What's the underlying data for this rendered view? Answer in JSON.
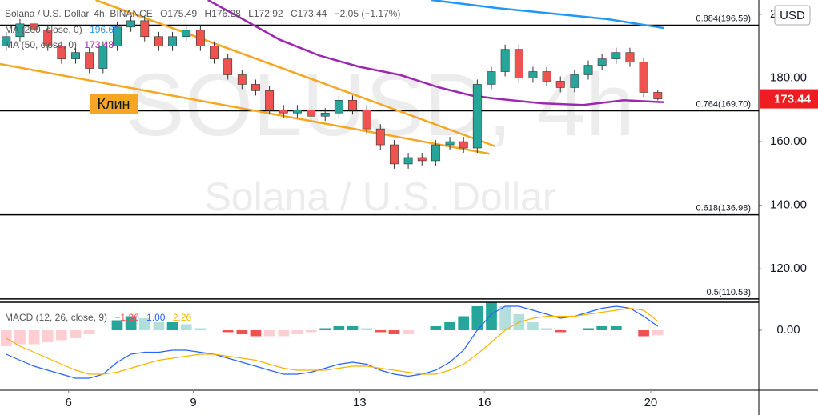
{
  "chart_data": [
    {
      "type": "candlestick",
      "title": "Solana / U.S. Dollar, 4h, BINANCE",
      "ohlc_legend": [
        "O175.49",
        "H176.28",
        "L172.92",
        "C173.44",
        "−2.05 (−1.17%)"
      ],
      "watermark": [
        "SOLUSD, 4h",
        "Solana / U.S. Dollar"
      ],
      "currency": "USD",
      "up_color": "#26a69a",
      "down_color": "#ef5350",
      "x": [
        4.5,
        4.83,
        5.17,
        5.5,
        5.83,
        6.17,
        6.5,
        6.83,
        7.17,
        7.5,
        7.83,
        8.17,
        8.5,
        8.83,
        9.17,
        9.5,
        9.83,
        10.17,
        10.5,
        10.83,
        11.17,
        11.5,
        11.83,
        12.17,
        12.5,
        12.83,
        13.17,
        13.5,
        13.83,
        14.17,
        14.5,
        14.83,
        15.17,
        15.5,
        15.83,
        16.17,
        16.5,
        16.83,
        17.17,
        17.5,
        17.83,
        18.17,
        18.5,
        18.83,
        19.17,
        19.5,
        19.83,
        20.17
      ],
      "open": [
        190,
        193,
        197,
        195,
        190,
        186,
        188,
        183,
        190,
        196,
        198,
        193,
        190,
        193,
        195,
        190,
        186,
        181,
        178,
        176,
        170,
        169,
        170,
        168,
        169,
        173,
        170,
        164,
        159,
        153,
        155,
        154,
        159,
        160,
        158,
        178,
        182,
        189,
        180,
        182,
        179,
        177,
        181,
        184,
        186,
        188,
        185,
        175.49
      ],
      "high": [
        194.5,
        198.5,
        198.5,
        196.5,
        191.5,
        189.5,
        189.5,
        191.5,
        197.5,
        199.5,
        199.5,
        194.5,
        194.5,
        196.5,
        196.5,
        191.5,
        187.5,
        182.5,
        179.5,
        177.5,
        171.5,
        171.5,
        171.5,
        170.5,
        174.5,
        174.5,
        171.5,
        165.5,
        160.5,
        156.5,
        156.5,
        160.5,
        161.5,
        161.5,
        179.5,
        183.5,
        190.5,
        190.5,
        183.5,
        183.5,
        180.5,
        182.5,
        185.5,
        187.5,
        189.5,
        189.5,
        186.5,
        176.28
      ],
      "low": [
        188.5,
        191.5,
        193.5,
        188.5,
        184.5,
        184.5,
        181.5,
        181.5,
        188.5,
        194.5,
        191.5,
        188.5,
        188.5,
        191.5,
        188.5,
        184.5,
        179.5,
        176.5,
        174.5,
        168.5,
        167.5,
        167.5,
        166.5,
        166.5,
        167.5,
        168.5,
        162.5,
        157.5,
        151.5,
        151.5,
        152.5,
        152.5,
        157.5,
        156.5,
        156.5,
        176.5,
        180.5,
        178.5,
        178.5,
        177.5,
        175.5,
        175.5,
        179.5,
        182.5,
        184.5,
        183.5,
        173.99,
        172.92
      ],
      "close": [
        193,
        197,
        195,
        190,
        186,
        188,
        183,
        190,
        196,
        198,
        193,
        190,
        193,
        195,
        190,
        186,
        181,
        178,
        176,
        170,
        169,
        170,
        168,
        169,
        173,
        170,
        164,
        159,
        153,
        155,
        154,
        159,
        160,
        158,
        178,
        182,
        189,
        180,
        182,
        179,
        177,
        181,
        184,
        186,
        188,
        185,
        175.49,
        173.44
      ],
      "overlays": [
        {
          "name": "MA (200, close, 0)",
          "value_label": "196.68",
          "color": "#2196f3",
          "x": [
            14.73,
            16.27,
            17.81,
            18.96,
            20.31
          ],
          "values": [
            204.5,
            202,
            200,
            198.5,
            195.7
          ]
        },
        {
          "name": "MA (50, close, 0)",
          "value_label": "173.48",
          "color": "#9c27b0",
          "x": [
            9.35,
            10.12,
            11.08,
            12.04,
            13,
            13.96,
            14.92,
            15.69,
            16.27,
            17.42,
            18.38,
            19.35,
            20.31
          ],
          "values": [
            204.5,
            199,
            192,
            187,
            183.5,
            181,
            177,
            174.5,
            173.5,
            172,
            171.5,
            173,
            172.4
          ]
        }
      ],
      "trendline_color": "#f5a623",
      "trendlines": [
        {
          "x": [
            6.65,
            16.27
          ],
          "values": [
            204.5,
            158.5
          ]
        },
        {
          "x": [
            4.35,
            16.12
          ],
          "values": [
            184.4,
            156.2
          ]
        }
      ],
      "annotation": "Клин",
      "levels": [
        {
          "value": 196.59,
          "label": "0.884(196.59)"
        },
        {
          "value": 169.7,
          "label": "0.764(169.70)"
        },
        {
          "value": 136.98,
          "label": "0.618(136.98)"
        },
        {
          "value": 110.53,
          "label": "0.5(110.53)"
        }
      ],
      "last_price": {
        "value": 173.44,
        "label": "173.44"
      },
      "ylim": [
        109.5,
        204.5
      ],
      "yticks": [
        {
          "value": 200,
          "label": "200.00"
        },
        {
          "value": 180,
          "label": "180.00"
        },
        {
          "value": 160,
          "label": "160.00"
        },
        {
          "value": 140,
          "label": "140.00"
        },
        {
          "value": 120,
          "label": "120.00"
        }
      ],
      "xlim": [
        4.35,
        22.6
      ],
      "xticks": [
        6,
        9,
        13,
        16,
        20
      ]
    },
    {
      "type": "macd",
      "title": "MACD (12, 26, close, 9)",
      "histogram": {
        "last_label": "−1.26",
        "colors": {
          "grow_above": "#26a69a",
          "fall_above": "#b2dfdb",
          "grow_below": "#ffcdd2",
          "fall_below": "#ef5350"
        },
        "values": [
          -4,
          -3.5,
          -3.5,
          -3,
          -2.5,
          -2,
          -1,
          0,
          2.5,
          3.5,
          3,
          2,
          2,
          1.5,
          0.5,
          0,
          -0.5,
          -1,
          -1.5,
          -1.5,
          -1.5,
          -1,
          -0.5,
          0.5,
          1,
          1,
          0.5,
          -0.5,
          -1,
          -1,
          0,
          1,
          2,
          3.5,
          6,
          7,
          6,
          4,
          2,
          0.5,
          -0.5,
          0,
          0.5,
          1,
          1,
          0,
          -1.5,
          -1.26
        ]
      },
      "macd": {
        "last_label": "1.00",
        "color": "#2962ff",
        "values": [
          -6,
          -7.5,
          -9,
          -10,
          -11,
          -12,
          -12,
          -11,
          -8,
          -6,
          -5.5,
          -5.5,
          -5,
          -5,
          -5.5,
          -6,
          -7,
          -8,
          -9,
          -10,
          -11,
          -11,
          -10.5,
          -9.5,
          -8.5,
          -8,
          -8.5,
          -10,
          -11,
          -11.5,
          -11,
          -10,
          -8,
          -5,
          0,
          4,
          6,
          6,
          5,
          4,
          3,
          3.5,
          4.5,
          5.5,
          6,
          5.5,
          3.5,
          1.0
        ]
      },
      "signal": {
        "last_label": "2.26",
        "color": "#f5b400",
        "values": [
          -2,
          -4,
          -5.5,
          -7,
          -8.5,
          -10,
          -11,
          -11,
          -10.5,
          -9.5,
          -8.5,
          -7.5,
          -7,
          -6.5,
          -6,
          -6,
          -6.5,
          -7,
          -7.5,
          -8.5,
          -9.5,
          -10,
          -10,
          -10,
          -9.5,
          -9,
          -9,
          -9.5,
          -10,
          -10.5,
          -11,
          -11,
          -10,
          -8.5,
          -6,
          -3,
          0,
          2,
          3,
          3.5,
          3.5,
          3.5,
          4,
          4.5,
          5,
          5.5,
          5,
          2.26
        ]
      },
      "ylim": [
        -15,
        7
      ],
      "yticks": [
        {
          "value": 0,
          "label": "0.00"
        }
      ]
    }
  ]
}
